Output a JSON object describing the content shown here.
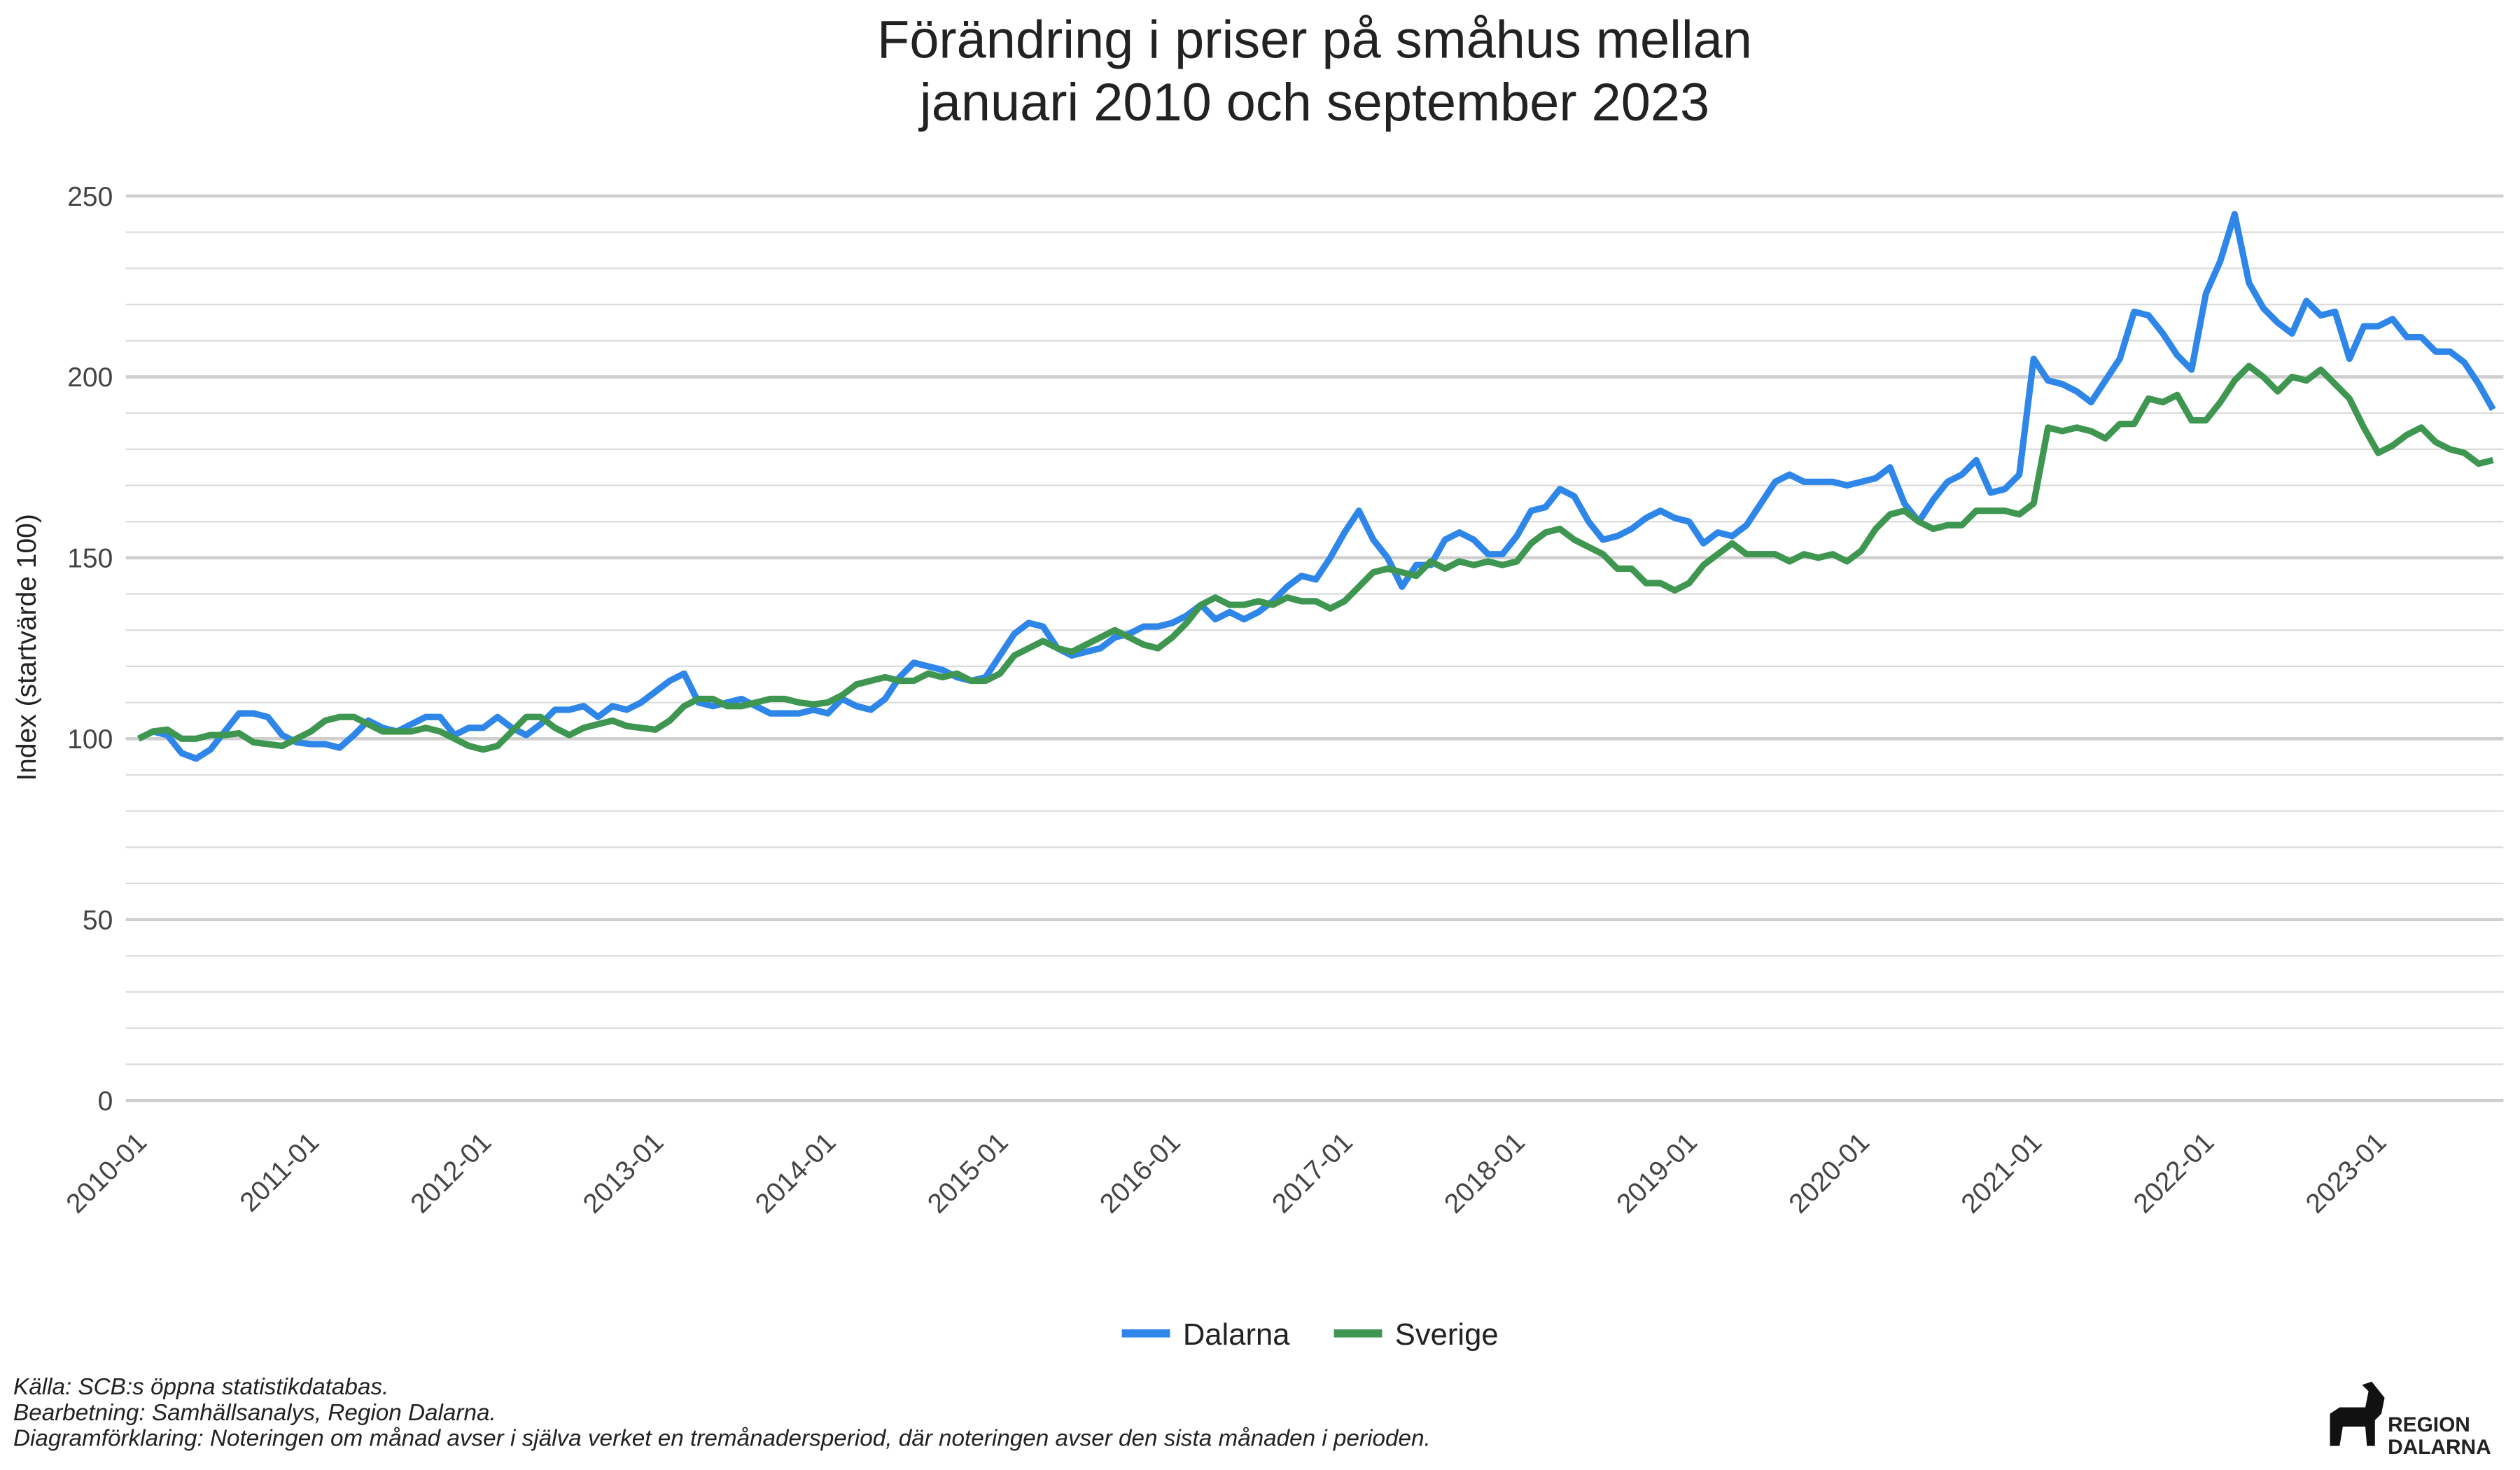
{
  "chart_data": {
    "type": "line",
    "title": [
      "Förändring i priser på småhus mellan",
      "januari 2010 och september 2023"
    ],
    "y_label": "Index (startvärde 100)",
    "x": [
      "2010-01",
      "2010-02",
      "2010-03",
      "2010-04",
      "2010-05",
      "2010-06",
      "2010-07",
      "2010-08",
      "2010-09",
      "2010-10",
      "2010-11",
      "2010-12",
      "2011-01",
      "2011-02",
      "2011-03",
      "2011-04",
      "2011-05",
      "2011-06",
      "2011-07",
      "2011-08",
      "2011-09",
      "2011-10",
      "2011-11",
      "2011-12",
      "2012-01",
      "2012-02",
      "2012-03",
      "2012-04",
      "2012-05",
      "2012-06",
      "2012-07",
      "2012-08",
      "2012-09",
      "2012-10",
      "2012-11",
      "2012-12",
      "2013-01",
      "2013-02",
      "2013-03",
      "2013-04",
      "2013-05",
      "2013-06",
      "2013-07",
      "2013-08",
      "2013-09",
      "2013-10",
      "2013-11",
      "2013-12",
      "2014-01",
      "2014-02",
      "2014-03",
      "2014-04",
      "2014-05",
      "2014-06",
      "2014-07",
      "2014-08",
      "2014-09",
      "2014-10",
      "2014-11",
      "2014-12",
      "2015-01",
      "2015-02",
      "2015-03",
      "2015-04",
      "2015-05",
      "2015-06",
      "2015-07",
      "2015-08",
      "2015-09",
      "2015-10",
      "2015-11",
      "2015-12",
      "2016-01",
      "2016-02",
      "2016-03",
      "2016-04",
      "2016-05",
      "2016-06",
      "2016-07",
      "2016-08",
      "2016-09",
      "2016-10",
      "2016-11",
      "2016-12",
      "2017-01",
      "2017-02",
      "2017-03",
      "2017-04",
      "2017-05",
      "2017-06",
      "2017-07",
      "2017-08",
      "2017-09",
      "2017-10",
      "2017-11",
      "2017-12",
      "2018-01",
      "2018-02",
      "2018-03",
      "2018-04",
      "2018-05",
      "2018-06",
      "2018-07",
      "2018-08",
      "2018-09",
      "2018-10",
      "2018-11",
      "2018-12",
      "2019-01",
      "2019-02",
      "2019-03",
      "2019-04",
      "2019-05",
      "2019-06",
      "2019-07",
      "2019-08",
      "2019-09",
      "2019-10",
      "2019-11",
      "2019-12",
      "2020-01",
      "2020-02",
      "2020-03",
      "2020-04",
      "2020-05",
      "2020-06",
      "2020-07",
      "2020-08",
      "2020-09",
      "2020-10",
      "2020-11",
      "2020-12",
      "2021-01",
      "2021-02",
      "2021-03",
      "2021-04",
      "2021-05",
      "2021-06",
      "2021-07",
      "2021-08",
      "2021-09",
      "2021-10",
      "2021-11",
      "2021-12",
      "2022-01",
      "2022-02",
      "2022-03",
      "2022-04",
      "2022-05",
      "2022-06",
      "2022-07",
      "2022-08",
      "2022-09",
      "2022-10",
      "2022-11",
      "2022-12",
      "2023-01",
      "2023-02",
      "2023-03",
      "2023-04",
      "2023-05",
      "2023-06",
      "2023-07",
      "2023-08",
      "2023-09"
    ],
    "series": [
      {
        "name": "Dalarna",
        "color": "#2e86e8",
        "values": [
          100,
          102,
          101,
          96,
          94.5,
          97,
          102,
          107,
          107,
          106,
          101,
          99,
          98.5,
          98.5,
          97.5,
          101,
          105,
          103,
          102,
          104,
          106,
          106,
          101,
          103,
          103,
          106,
          103,
          101,
          104,
          108,
          108,
          109,
          106,
          109,
          108,
          110,
          113,
          116,
          118,
          110,
          109,
          110,
          111,
          109,
          107,
          107,
          107,
          108,
          107,
          111,
          109,
          108,
          111,
          117,
          121,
          120,
          119,
          117,
          116,
          117,
          123,
          129,
          132,
          131,
          125,
          123,
          124,
          125,
          128,
          129,
          131,
          131,
          132,
          134,
          137,
          133,
          135,
          133,
          135,
          138,
          142,
          145,
          144,
          150,
          157,
          163,
          155,
          150,
          142,
          148,
          148,
          155,
          157,
          155,
          151,
          151,
          156,
          163,
          164,
          169,
          167,
          160,
          155,
          156,
          158,
          161,
          163,
          161,
          160,
          154,
          157,
          156,
          159,
          165,
          171,
          173,
          171,
          171,
          171,
          170,
          171,
          172,
          175,
          165,
          160,
          166,
          171,
          173,
          177,
          168,
          169,
          173,
          205,
          199,
          198,
          196,
          193,
          199,
          205,
          218,
          217,
          212,
          206,
          202,
          223,
          232,
          245,
          226,
          219,
          215,
          212,
          221,
          217,
          218,
          205,
          214,
          214,
          216,
          211,
          211,
          207,
          207,
          204,
          198,
          191
        ]
      },
      {
        "name": "Sverige",
        "color": "#3e9651",
        "values": [
          100,
          102,
          102.5,
          100,
          100,
          101,
          101,
          101.5,
          99,
          98.5,
          98,
          100,
          102,
          105,
          106,
          106,
          104,
          102,
          102,
          102,
          103,
          102,
          100,
          98,
          97,
          98,
          102,
          106,
          106,
          103,
          101,
          103,
          104,
          105,
          103.5,
          103,
          102.5,
          105,
          109,
          111,
          111,
          109,
          109,
          110,
          111,
          111,
          110,
          109.5,
          110,
          112,
          115,
          116,
          117,
          116,
          116,
          118,
          117,
          118,
          116,
          116,
          118,
          123,
          125,
          127,
          125,
          124,
          126,
          128,
          130,
          128,
          126,
          125,
          128,
          132,
          137,
          139,
          137,
          137,
          138,
          137,
          139,
          138,
          138,
          136,
          138,
          142,
          146,
          147,
          146,
          145,
          149,
          147,
          149,
          148,
          149,
          148,
          149,
          154,
          157,
          158,
          155,
          153,
          151,
          147,
          147,
          143,
          143,
          141,
          143,
          148,
          151,
          154,
          151,
          151,
          151,
          149,
          151,
          150,
          151,
          149,
          152,
          158,
          162,
          163,
          160,
          158,
          159,
          159,
          163,
          163,
          163,
          162,
          165,
          186,
          185,
          186,
          185,
          183,
          187,
          187,
          194,
          193,
          195,
          188,
          188,
          193,
          199,
          203,
          200,
          196,
          200,
          199,
          202,
          198,
          194,
          186,
          179,
          181,
          184,
          186,
          182,
          180,
          179,
          176,
          177
        ]
      }
    ],
    "xticks": [
      "2010-01",
      "2011-01",
      "2012-01",
      "2013-01",
      "2014-01",
      "2015-01",
      "2016-01",
      "2017-01",
      "2018-01",
      "2019-01",
      "2020-01",
      "2021-01",
      "2022-01",
      "2023-01"
    ],
    "ylim": [
      0,
      250
    ],
    "yticks": [
      0,
      50,
      100,
      150,
      200,
      250
    ],
    "minor_yticks": [
      10,
      20,
      30,
      40,
      60,
      70,
      80,
      90,
      110,
      120,
      130,
      140,
      160,
      170,
      180,
      190,
      210,
      220,
      230,
      240
    ],
    "grid": true,
    "legend": "bottom",
    "caption": [
      "Källa: SCB:s öppna statistikdatabas.",
      "Bearbetning: Samhällsanalys, Region Dalarna.",
      "Diagramförklaring: Noteringen om månad avser i själva verket en tremånadersperiod, där noteringen avser den sista månaden i perioden."
    ],
    "logo": [
      "REGION",
      "DALARNA"
    ]
  }
}
